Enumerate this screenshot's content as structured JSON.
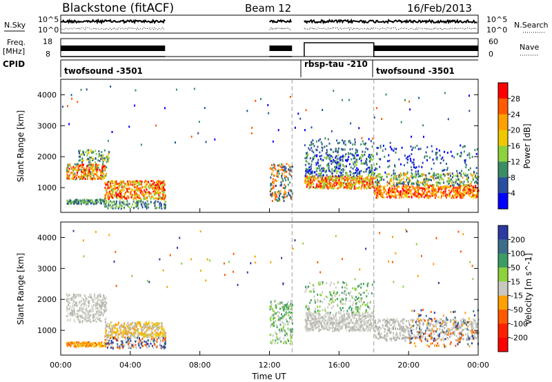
{
  "header": {
    "station": "Blackstone (fitACF)",
    "beam": "Beam 12",
    "date": "16/Feb/2013"
  },
  "panels": {
    "nsky_label": "N.Sky",
    "nsearch_label": "N.Search",
    "freq_label_1": "Freq.",
    "freq_label_2": "[MHz]",
    "nave_label": "Nave",
    "cpid_label": "CPID",
    "nsky_ticks": [
      "10^5",
      "10^0"
    ],
    "nsearch_ticks": [
      "10^5",
      "10^0"
    ],
    "freq_ticks": [
      "18",
      "8"
    ],
    "nave_ticks": [
      "60",
      "0"
    ],
    "cpid_segments": [
      {
        "label": "twofsound -3501",
        "start_hour": 0.0
      },
      {
        "label": "rbsp-tau -210",
        "start_hour": 14.0
      },
      {
        "label": "twofsound -3501",
        "start_hour": 18.0
      }
    ]
  },
  "chart_data": [
    {
      "type": "heatmap",
      "title": "",
      "xlabel": "",
      "ylabel": "Slant Range [km]",
      "x_range_hours": [
        0,
        24
      ],
      "ylim": [
        200,
        4500
      ],
      "yticks": [
        "1000",
        "2000",
        "3000",
        "4000"
      ],
      "colorbar_label": "Power [dB]",
      "colorbar_ticks": [
        "28",
        "24",
        "20",
        "16",
        "12",
        "8",
        "4"
      ],
      "colorbar_colors": [
        "#ff0000",
        "#ff5a00",
        "#ffa000",
        "#f0c800",
        "#8cd23c",
        "#3c8c64",
        "#2a4fa0",
        "#0000ff"
      ],
      "scatter_regions": [
        {
          "t0": 0.3,
          "t1": 2.6,
          "r0": 1300,
          "r1": 1800,
          "density": 260,
          "colors": [
            "#ff5a00",
            "#ffa000",
            "#f0c800",
            "#ff0000",
            "#3c8c64"
          ]
        },
        {
          "t0": 1.0,
          "t1": 2.8,
          "r0": 1850,
          "r1": 2250,
          "density": 90,
          "colors": [
            "#f0c800",
            "#8cd23c",
            "#3c8c64",
            "#2a4fa0"
          ]
        },
        {
          "t0": 0.3,
          "t1": 2.6,
          "r0": 500,
          "r1": 650,
          "density": 120,
          "colors": [
            "#3c8c64",
            "#2a4fa0",
            "#8cd23c"
          ]
        },
        {
          "t0": 2.5,
          "t1": 6.0,
          "r0": 650,
          "r1": 1250,
          "density": 420,
          "colors": [
            "#ff5a00",
            "#ffa000",
            "#f0c800",
            "#ff0000",
            "#8cd23c"
          ]
        },
        {
          "t0": 2.5,
          "t1": 6.0,
          "r0": 350,
          "r1": 600,
          "density": 120,
          "colors": [
            "#3c8c64",
            "#2a4fa0",
            "#8cd23c"
          ]
        },
        {
          "t0": 12.0,
          "t1": 13.3,
          "r0": 600,
          "r1": 1800,
          "density": 160,
          "colors": [
            "#ff5a00",
            "#ffa000",
            "#3c8c64",
            "#2a4fa0"
          ]
        },
        {
          "t0": 14.0,
          "t1": 18.0,
          "r0": 1000,
          "r1": 1400,
          "density": 420,
          "colors": [
            "#ff5a00",
            "#ffa000",
            "#f0c800",
            "#ff0000",
            "#8cd23c"
          ]
        },
        {
          "t0": 14.0,
          "t1": 18.0,
          "r0": 1400,
          "r1": 2100,
          "density": 300,
          "colors": [
            "#3c8c64",
            "#2a4fa0",
            "#0000ff",
            "#8cd23c"
          ]
        },
        {
          "t0": 14.0,
          "t1": 18.0,
          "r0": 2100,
          "r1": 2600,
          "density": 90,
          "colors": [
            "#2a4fa0",
            "#3c8c64"
          ]
        },
        {
          "t0": 18.0,
          "t1": 24.0,
          "r0": 700,
          "r1": 1100,
          "density": 520,
          "colors": [
            "#ff0000",
            "#ff5a00",
            "#ffa000",
            "#f0c800"
          ]
        },
        {
          "t0": 18.0,
          "t1": 24.0,
          "r0": 1100,
          "r1": 1500,
          "density": 300,
          "colors": [
            "#8cd23c",
            "#3c8c64",
            "#2a4fa0",
            "#ffa000"
          ]
        },
        {
          "t0": 18.0,
          "t1": 24.0,
          "r0": 1500,
          "r1": 2400,
          "density": 140,
          "colors": [
            "#2a4fa0",
            "#3c8c64",
            "#0000ff"
          ]
        },
        {
          "t0": 0.0,
          "t1": 24.0,
          "r0": 2400,
          "r1": 4300,
          "density": 70,
          "colors": [
            "#2a4fa0",
            "#3c8c64",
            "#ff5a00",
            "#0000ff"
          ]
        }
      ]
    },
    {
      "type": "heatmap",
      "title": "",
      "xlabel": "Time UT",
      "ylabel": "Slant Range [km]",
      "x_range_hours": [
        0,
        24
      ],
      "ylim": [
        200,
        4500
      ],
      "xticks": [
        "00:00",
        "04:00",
        "08:00",
        "12:00",
        "16:00",
        "20:00",
        "00:00"
      ],
      "yticks": [
        "1000",
        "2000",
        "3000",
        "4000"
      ],
      "colorbar_label": "Velocity [m s^-1]",
      "colorbar_ticks": [
        "200",
        "100",
        "50",
        "15",
        "-15",
        "-50",
        "-100",
        "-200"
      ],
      "colorbar_colors": [
        "#2a3aa0",
        "#3c6e8c",
        "#3c9c64",
        "#8cd23c",
        "#c8c8c0",
        "#ffa000",
        "#ff5a00",
        "#ff2000",
        "#ff0000"
      ],
      "scatter_regions": [
        {
          "t0": 0.3,
          "t1": 2.6,
          "r0": 1300,
          "r1": 2200,
          "density": 300,
          "colors": [
            "#c8c8c0",
            "#b4b4ac",
            "#d8d8d0"
          ]
        },
        {
          "t0": 0.3,
          "t1": 2.6,
          "r0": 500,
          "r1": 650,
          "density": 130,
          "colors": [
            "#ffa000",
            "#f0c800",
            "#ff5a00"
          ]
        },
        {
          "t0": 2.5,
          "t1": 6.0,
          "r0": 800,
          "r1": 1300,
          "density": 380,
          "colors": [
            "#c8c8c0",
            "#ffa000",
            "#f0c800",
            "#b4b4ac"
          ]
        },
        {
          "t0": 2.5,
          "t1": 6.0,
          "r0": 450,
          "r1": 800,
          "density": 160,
          "colors": [
            "#2a3aa0",
            "#3c6e8c",
            "#ff5a00",
            "#c8c8c0"
          ]
        },
        {
          "t0": 12.0,
          "t1": 13.3,
          "r0": 600,
          "r1": 2000,
          "density": 180,
          "colors": [
            "#8cd23c",
            "#3c9c64",
            "#c8c8c0"
          ]
        },
        {
          "t0": 14.0,
          "t1": 18.0,
          "r0": 1000,
          "r1": 1600,
          "density": 520,
          "colors": [
            "#c8c8c0",
            "#b4b4ac",
            "#d8d8d0"
          ]
        },
        {
          "t0": 14.0,
          "t1": 18.0,
          "r0": 1600,
          "r1": 2600,
          "density": 200,
          "colors": [
            "#8cd23c",
            "#3c9c64",
            "#c8c8c0"
          ]
        },
        {
          "t0": 18.0,
          "t1": 24.0,
          "r0": 700,
          "r1": 1400,
          "density": 520,
          "colors": [
            "#c8c8c0",
            "#b4b4ac",
            "#d8d8d0",
            "#a8a8a0"
          ]
        },
        {
          "t0": 20.0,
          "t1": 24.0,
          "r0": 500,
          "r1": 1700,
          "density": 160,
          "colors": [
            "#ffa000",
            "#ff5a00",
            "#2a3aa0",
            "#3c6e8c"
          ]
        },
        {
          "t0": 0.0,
          "t1": 24.0,
          "r0": 2400,
          "r1": 4300,
          "density": 70,
          "colors": [
            "#ff5a00",
            "#2a3aa0",
            "#8cd23c",
            "#ffa000"
          ]
        }
      ]
    }
  ]
}
